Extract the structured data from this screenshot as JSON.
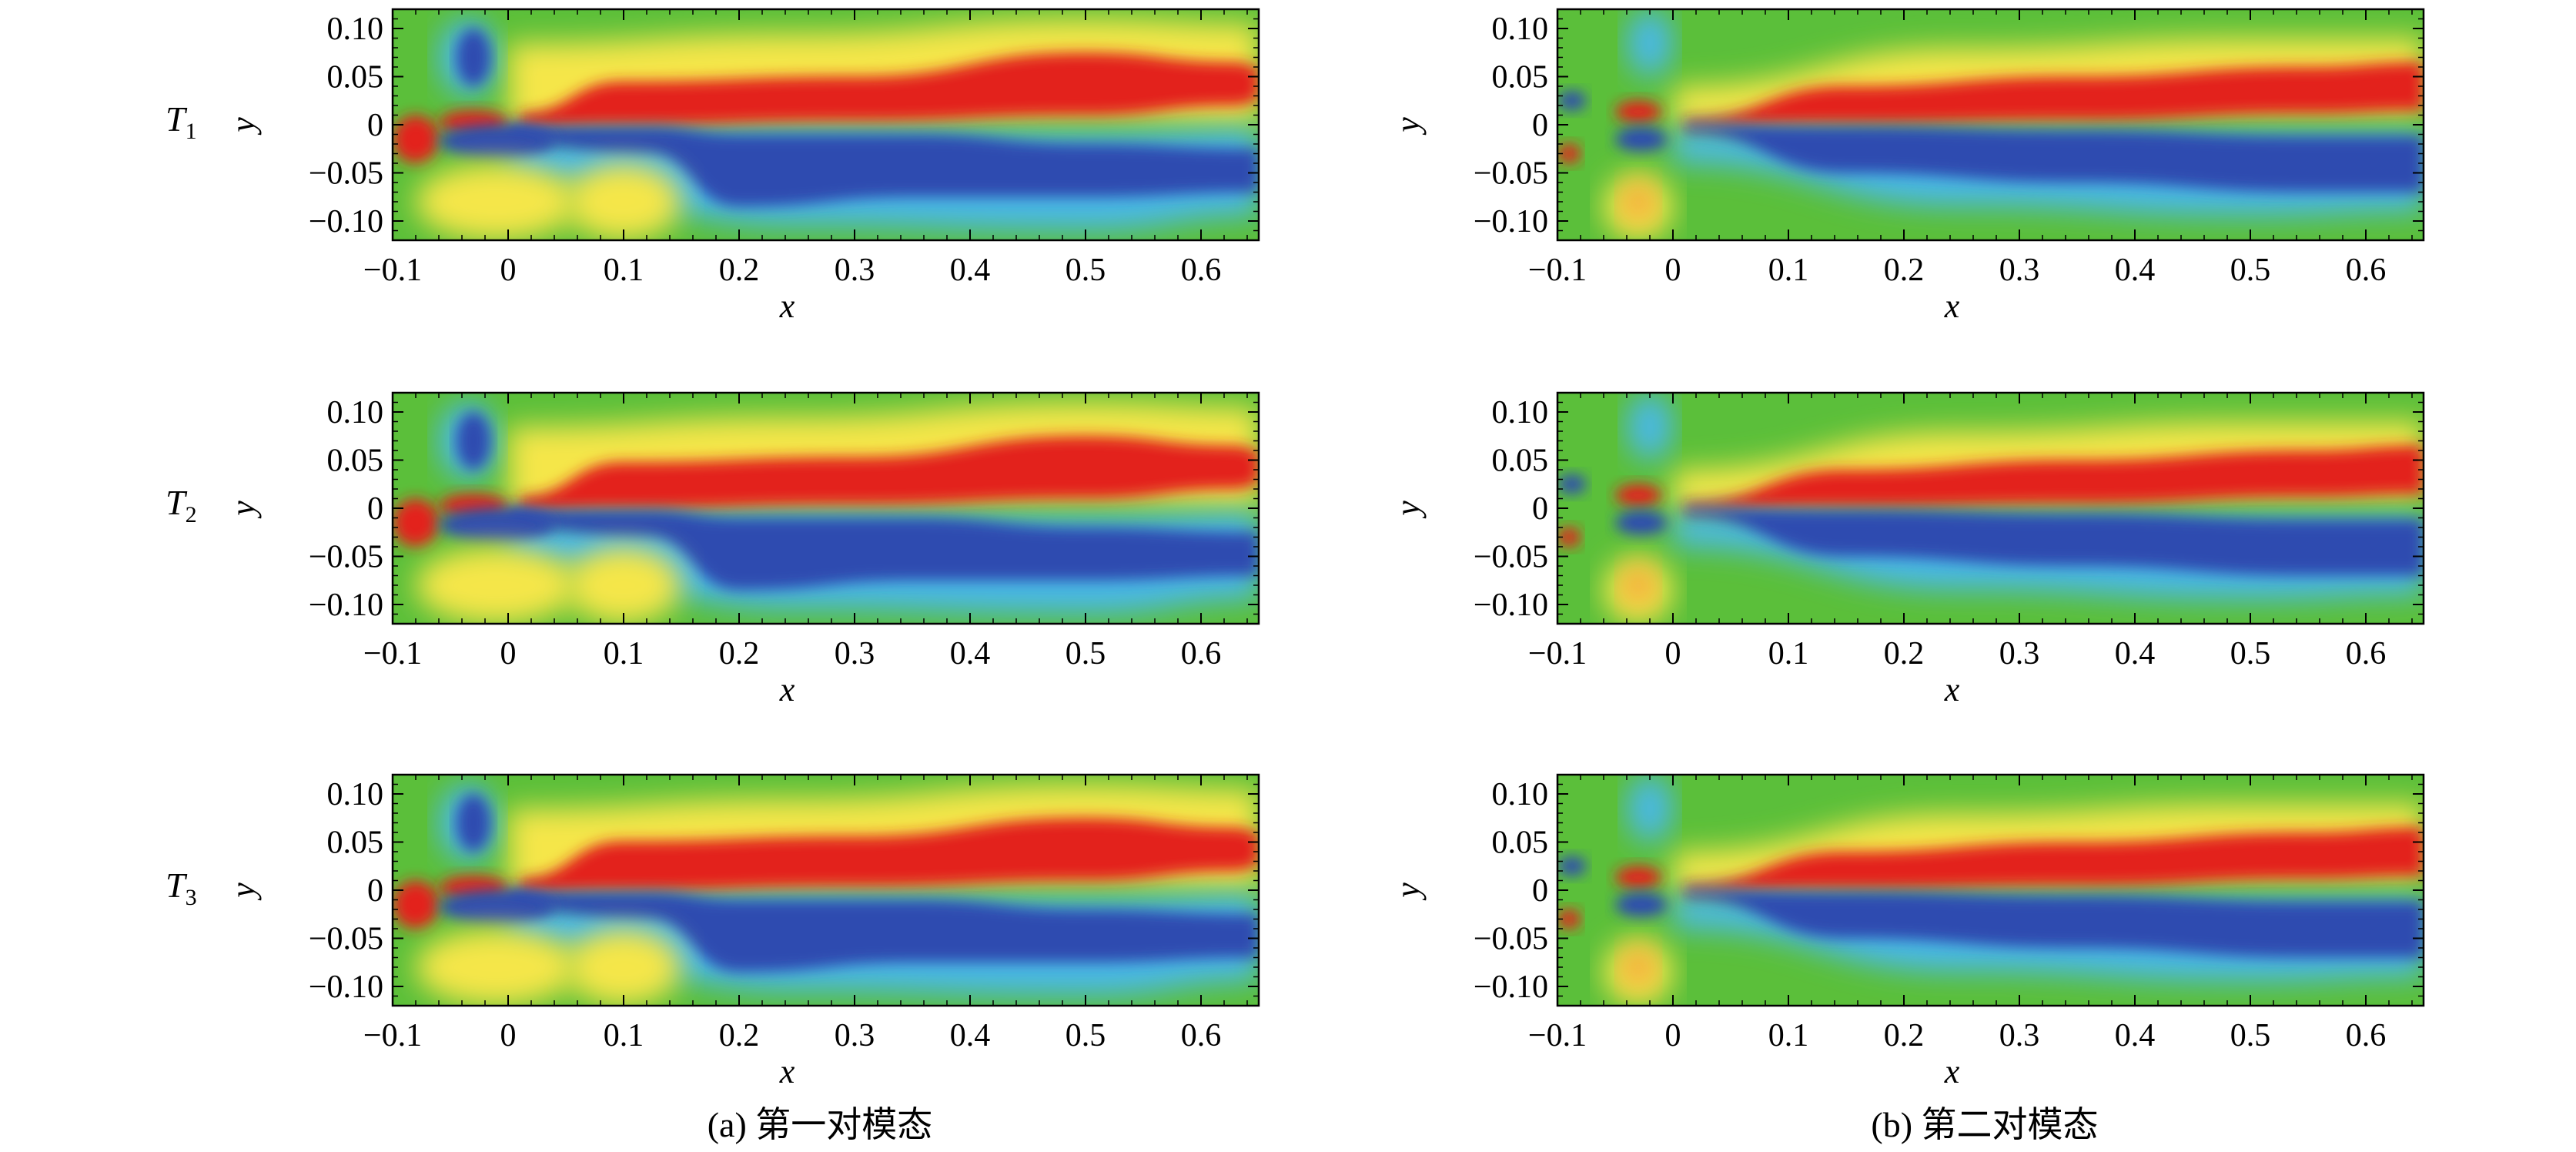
{
  "chart_data": {
    "type": "heatmap",
    "description_axis": {
      "xlabel": "x",
      "ylabel": "y",
      "xlim": [
        -0.1,
        0.65
      ],
      "ylim": [
        -0.12,
        0.12
      ]
    },
    "xticks": [
      "−0.1",
      "0",
      "0.1",
      "0.2",
      "0.3",
      "0.4",
      "0.5",
      "0.6"
    ],
    "xtick_values": [
      -0.1,
      0,
      0.1,
      0.2,
      0.3,
      0.4,
      0.5,
      0.6
    ],
    "yticks": [
      "0.10",
      "0.05",
      "0",
      "−0.05",
      "−0.10"
    ],
    "ytick_values": [
      0.1,
      0.05,
      0,
      -0.05,
      -0.1
    ],
    "xlabel": "x",
    "ylabel": "y",
    "columns": [
      {
        "caption": "(a) 第一对模态",
        "label_id": "a"
      },
      {
        "caption": "(b) 第二对模态",
        "label_id": "b"
      }
    ],
    "rows": [
      {
        "label": "T",
        "sub": "1"
      },
      {
        "label": "T",
        "sub": "2"
      },
      {
        "label": "T",
        "sub": "3"
      }
    ],
    "colors": {
      "positive": "#e3231f",
      "negative": "#2f4bb0",
      "neutral": "#5bbf3a",
      "warm_mid": "#f5e64a",
      "cool_mid": "#49b8e6"
    }
  }
}
